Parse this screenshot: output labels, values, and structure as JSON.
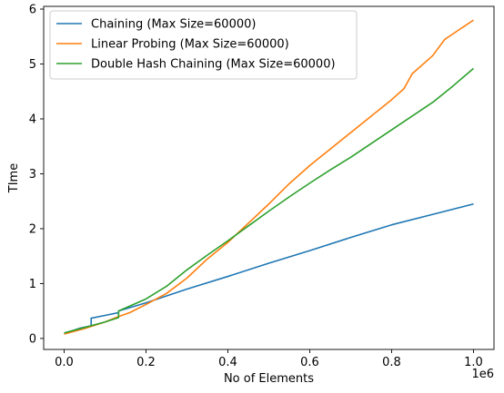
{
  "chart_data": {
    "type": "line",
    "xlabel": "No of Elements",
    "ylabel": "TIme",
    "x_offset_label": "1e6",
    "xlim": [
      -0.05,
      1.05
    ],
    "ylim": [
      -0.2,
      6.05
    ],
    "xticks": [
      0.0,
      0.2,
      0.4,
      0.6,
      0.8,
      1.0
    ],
    "xtick_labels": [
      "0.0",
      "0.2",
      "0.4",
      "0.6",
      "0.8",
      "1.0"
    ],
    "yticks": [
      0,
      1,
      2,
      3,
      4,
      5,
      6
    ],
    "ytick_labels": [
      "0",
      "1",
      "2",
      "3",
      "4",
      "5",
      "6"
    ],
    "grid": false,
    "legend_position": "top-left",
    "series": [
      {
        "name": "Chaining (Max Size=60000)",
        "color": "#1f77b4",
        "x": [
          0.0,
          0.02,
          0.04,
          0.066,
          0.066,
          0.1,
          0.133,
          0.133,
          0.2,
          0.3,
          0.4,
          0.5,
          0.6,
          0.7,
          0.8,
          0.9,
          1.0
        ],
        "y": [
          0.1,
          0.14,
          0.19,
          0.23,
          0.37,
          0.42,
          0.47,
          0.5,
          0.65,
          0.9,
          1.13,
          1.37,
          1.6,
          1.84,
          2.07,
          2.26,
          2.45
        ]
      },
      {
        "name": "Linear Probing (Max Size=60000)",
        "color": "#ff7f0e",
        "x": [
          0.0,
          0.05,
          0.1,
          0.133,
          0.16,
          0.2,
          0.25,
          0.3,
          0.35,
          0.4,
          0.45,
          0.5,
          0.55,
          0.6,
          0.65,
          0.7,
          0.75,
          0.8,
          0.83,
          0.85,
          0.9,
          0.93,
          0.95,
          1.0
        ],
        "y": [
          0.08,
          0.18,
          0.3,
          0.4,
          0.47,
          0.62,
          0.82,
          1.1,
          1.45,
          1.75,
          2.1,
          2.45,
          2.82,
          3.15,
          3.45,
          3.75,
          4.05,
          4.35,
          4.55,
          4.82,
          5.15,
          5.45,
          5.55,
          5.8
        ]
      },
      {
        "name": "Double Hash Chaining (Max Size=60000)",
        "color": "#2ca02c",
        "x": [
          0.0,
          0.05,
          0.1,
          0.133,
          0.133,
          0.2,
          0.25,
          0.3,
          0.35,
          0.4,
          0.45,
          0.5,
          0.55,
          0.6,
          0.65,
          0.7,
          0.75,
          0.8,
          0.85,
          0.9,
          0.95,
          1.0
        ],
        "y": [
          0.1,
          0.2,
          0.3,
          0.38,
          0.5,
          0.72,
          0.95,
          1.25,
          1.52,
          1.78,
          2.05,
          2.32,
          2.58,
          2.83,
          3.07,
          3.3,
          3.55,
          3.8,
          4.05,
          4.3,
          4.6,
          4.92
        ]
      }
    ]
  }
}
